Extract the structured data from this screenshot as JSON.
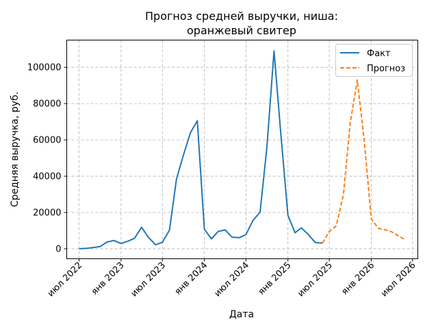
{
  "chart_data": {
    "type": "line",
    "title_lines": [
      "Прогноз средней выручки, ниша:",
      "оранжевый свитер"
    ],
    "xlabel": "Дата",
    "ylabel": "Средняя выручка, руб.",
    "grid": true,
    "legend_position": "top-right",
    "xlim": [
      "2022-05-08",
      "2026-07-24"
    ],
    "ylim": [
      -5500,
      115000
    ],
    "x_ticks": [
      {
        "date": "2022-07-01",
        "label": "июл 2022"
      },
      {
        "date": "2023-01-01",
        "label": "янв 2023"
      },
      {
        "date": "2023-07-01",
        "label": "июл 2023"
      },
      {
        "date": "2024-01-01",
        "label": "янв 2024"
      },
      {
        "date": "2024-07-01",
        "label": "июл 2024"
      },
      {
        "date": "2025-01-01",
        "label": "янв 2025"
      },
      {
        "date": "2025-07-01",
        "label": "июл 2025"
      },
      {
        "date": "2026-01-01",
        "label": "янв 2026"
      },
      {
        "date": "2026-07-01",
        "label": "июл 2026"
      }
    ],
    "y_ticks": [
      {
        "value": 0,
        "label": "0"
      },
      {
        "value": 20000,
        "label": "20000"
      },
      {
        "value": 40000,
        "label": "40000"
      },
      {
        "value": 60000,
        "label": "60000"
      },
      {
        "value": 80000,
        "label": "80000"
      },
      {
        "value": 100000,
        "label": "100000"
      }
    ],
    "series": [
      {
        "name": "Факт",
        "color": "#1f77b4",
        "style": "solid",
        "x": [
          "2022-07-01",
          "2022-08-01",
          "2022-09-01",
          "2022-10-01",
          "2022-11-01",
          "2022-12-01",
          "2023-01-01",
          "2023-02-01",
          "2023-03-01",
          "2023-04-01",
          "2023-05-01",
          "2023-06-01",
          "2023-07-01",
          "2023-08-01",
          "2023-09-01",
          "2023-10-01",
          "2023-11-01",
          "2023-12-01",
          "2024-01-01",
          "2024-02-01",
          "2024-03-01",
          "2024-04-01",
          "2024-05-01",
          "2024-06-01",
          "2024-07-01",
          "2024-08-01",
          "2024-09-01",
          "2024-10-01",
          "2024-11-01",
          "2024-12-01",
          "2025-01-01",
          "2025-02-01",
          "2025-03-01",
          "2025-04-01",
          "2025-05-01",
          "2025-06-01"
        ],
        "y": [
          0,
          200,
          700,
          1200,
          3700,
          4600,
          2900,
          4200,
          5800,
          11800,
          6300,
          2200,
          3600,
          10200,
          38500,
          51500,
          64000,
          70500,
          10800,
          5400,
          9500,
          10400,
          6400,
          6100,
          7800,
          15600,
          20200,
          56000,
          109000,
          63000,
          18500,
          8800,
          11500,
          7800,
          3400,
          3100
        ]
      },
      {
        "name": "Прогноз",
        "color": "#ff7f0e",
        "style": "dashed",
        "x": [
          "2025-06-01",
          "2025-07-01",
          "2025-08-01",
          "2025-09-01",
          "2025-10-01",
          "2025-11-01",
          "2025-12-01",
          "2026-01-01",
          "2026-02-01",
          "2026-03-01",
          "2026-04-01",
          "2026-05-01",
          "2026-06-01"
        ],
        "y": [
          3100,
          9500,
          12700,
          29800,
          69500,
          93000,
          60000,
          16500,
          11300,
          10500,
          9300,
          7000,
          4800
        ]
      }
    ]
  }
}
